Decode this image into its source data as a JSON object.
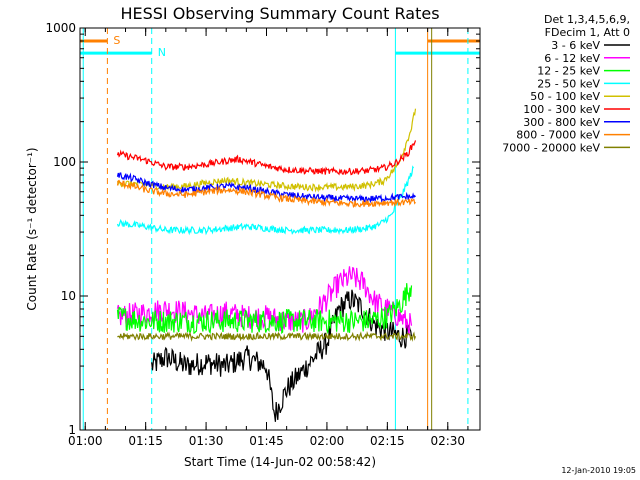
{
  "chart_data": {
    "type": "line",
    "title": "HESSI Observing Summary Count Rates",
    "xlabel": "Start Time (14-Jun-02 00:58:42)",
    "ylabel": "Count Rate (s⁻¹ detector⁻¹)",
    "xlim": [
      "00:58:42",
      "02:38:00"
    ],
    "ylim": [
      1,
      1000
    ],
    "yscale": "log",
    "x_ticks": [
      "01:00",
      "01:15",
      "01:30",
      "01:45",
      "02:00",
      "02:15",
      "02:30"
    ],
    "y_ticks": [
      "1",
      "10",
      "100",
      "1000"
    ],
    "grid": false,
    "legend_position": "right",
    "legend_header": [
      "Det 1,3,4,5,6,9,",
      "FDecim 1, Att 0"
    ],
    "footer_date": "12-Jan-2010 19:05",
    "markers": [
      {
        "label": "S",
        "start": "01:05:30",
        "end": "02:25:00",
        "color": "#ff8000",
        "level": 800
      },
      {
        "label": "N",
        "start": "01:16:30",
        "end": "02:17:00",
        "color": "#00ffff",
        "level": 650
      }
    ],
    "vlines": [
      {
        "x": "00:59:30",
        "color": "#00ffff",
        "style": "solid"
      },
      {
        "x": "01:05:30",
        "color": "#ff8000",
        "style": "dashed"
      },
      {
        "x": "01:16:30",
        "color": "#00ffff",
        "style": "dashed"
      },
      {
        "x": "02:17:00",
        "color": "#00ffff",
        "style": "solid"
      },
      {
        "x": "02:25:00",
        "color": "#ff8000",
        "style": "solid"
      },
      {
        "x": "02:26:00",
        "color": "#808000",
        "style": "solid"
      },
      {
        "x": "02:35:00",
        "color": "#00ffff",
        "style": "dashed"
      }
    ],
    "series": [
      {
        "name": "3 - 6 keV",
        "color": "#000000",
        "x": [
          "01:16:30",
          "01:20:00",
          "01:25:00",
          "01:30:00",
          "01:35:00",
          "01:40:00",
          "01:45:00",
          "01:47:00",
          "01:50:00",
          "01:55:00",
          "02:00:00",
          "02:03:00",
          "02:06:00",
          "02:09:00",
          "02:12:00",
          "02:15:00",
          "02:18:00",
          "02:21:00"
        ],
        "values": [
          3.0,
          3.5,
          3.0,
          3.2,
          3.0,
          3.5,
          3.0,
          1.3,
          2.0,
          3.0,
          4.5,
          8.0,
          9.5,
          8.0,
          6.0,
          5.5,
          5.0,
          5.0
        ]
      },
      {
        "name": "6 - 12 keV",
        "color": "#ff00ff",
        "x": [
          "01:08:00",
          "01:15:00",
          "01:20:00",
          "01:25:00",
          "01:30:00",
          "01:35:00",
          "01:40:00",
          "01:45:00",
          "01:50:00",
          "01:55:00",
          "02:00:00",
          "02:03:00",
          "02:06:00",
          "02:09:00",
          "02:12:00",
          "02:15:00",
          "02:18:00",
          "02:21:00"
        ],
        "values": [
          7.0,
          7.5,
          8.0,
          7.5,
          7.0,
          7.5,
          7.0,
          7.0,
          6.5,
          6.5,
          9.5,
          12.5,
          14.0,
          12.5,
          9.0,
          8.0,
          7.0,
          6.0
        ]
      },
      {
        "name": "12 - 25 keV",
        "color": "#00ff00",
        "x": [
          "01:08:00",
          "01:15:00",
          "01:20:00",
          "01:25:00",
          "01:30:00",
          "01:35:00",
          "01:40:00",
          "01:45:00",
          "01:50:00",
          "01:55:00",
          "02:00:00",
          "02:05:00",
          "02:10:00",
          "02:15:00",
          "02:18:00",
          "02:21:00"
        ],
        "values": [
          7.0,
          6.5,
          6.5,
          6.5,
          6.5,
          6.5,
          6.5,
          6.5,
          6.5,
          6.5,
          6.5,
          6.5,
          6.5,
          7.0,
          8.5,
          12.0
        ]
      },
      {
        "name": "25 - 50 keV",
        "color": "#00ffff",
        "x": [
          "01:08:00",
          "01:15:00",
          "01:20:00",
          "01:25:00",
          "01:30:00",
          "01:35:00",
          "01:40:00",
          "01:45:00",
          "01:50:00",
          "01:55:00",
          "02:00:00",
          "02:05:00",
          "02:10:00",
          "02:13:00",
          "02:16:00",
          "02:18:00",
          "02:20:00",
          "02:21:30"
        ],
        "values": [
          35.0,
          33.0,
          31.0,
          31.0,
          31.0,
          32.0,
          33.0,
          32.0,
          31.0,
          31.0,
          31.0,
          31.0,
          32.0,
          34.0,
          40.0,
          52.0,
          70.0,
          90.0
        ]
      },
      {
        "name": "50 - 100 keV",
        "color": "#d0c000",
        "x": [
          "01:08:00",
          "01:15:00",
          "01:20:00",
          "01:25:00",
          "01:30:00",
          "01:35:00",
          "01:40:00",
          "01:45:00",
          "01:50:00",
          "01:55:00",
          "02:00:00",
          "02:05:00",
          "02:10:00",
          "02:14:00",
          "02:17:00",
          "02:19:00",
          "02:21:00",
          "02:22:00"
        ],
        "values": [
          70.0,
          68.0,
          65.0,
          66.0,
          70.0,
          73.0,
          70.0,
          68.0,
          66.0,
          65.0,
          65.0,
          65.0,
          67.0,
          72.0,
          90.0,
          120.0,
          180.0,
          250.0
        ]
      },
      {
        "name": "100 - 300 keV",
        "color": "#ff0000",
        "x": [
          "01:08:00",
          "01:15:00",
          "01:20:00",
          "01:25:00",
          "01:30:00",
          "01:35:00",
          "01:38:00",
          "01:40:00",
          "01:45:00",
          "01:50:00",
          "01:55:00",
          "02:00:00",
          "02:05:00",
          "02:10:00",
          "02:14:00",
          "02:17:00",
          "02:20:00",
          "02:22:00"
        ],
        "values": [
          115.0,
          103.0,
          92.0,
          92.0,
          96.0,
          102.0,
          105.0,
          102.0,
          93.0,
          88.0,
          86.0,
          85.0,
          85.0,
          86.0,
          90.0,
          98.0,
          115.0,
          145.0
        ]
      },
      {
        "name": "300 - 800 keV",
        "color": "#0000ff",
        "x": [
          "01:08:00",
          "01:12:00",
          "01:15:00",
          "01:20:00",
          "01:25:00",
          "01:30:00",
          "01:35:00",
          "01:40:00",
          "01:45:00",
          "01:50:00",
          "01:55:00",
          "02:00:00",
          "02:05:00",
          "02:10:00",
          "02:15:00",
          "02:20:00",
          "02:22:00"
        ],
        "values": [
          80.0,
          75.0,
          70.0,
          64.0,
          62.0,
          64.0,
          66.0,
          64.0,
          60.0,
          57.0,
          55.0,
          54.0,
          53.0,
          53.0,
          54.0,
          55.0,
          55.0
        ]
      },
      {
        "name": "800 - 7000 keV",
        "color": "#ff8000",
        "x": [
          "01:08:00",
          "01:12:00",
          "01:15:00",
          "01:20:00",
          "01:25:00",
          "01:30:00",
          "01:35:00",
          "01:40:00",
          "01:45:00",
          "01:50:00",
          "01:55:00",
          "02:00:00",
          "02:05:00",
          "02:10:00",
          "02:15:00",
          "02:20:00",
          "02:22:00"
        ],
        "values": [
          70.0,
          66.0,
          62.0,
          58.0,
          57.0,
          60.0,
          62.0,
          60.0,
          56.0,
          53.0,
          51.0,
          50.0,
          49.0,
          49.0,
          50.0,
          50.0,
          50.0
        ]
      },
      {
        "name": "7000 - 20000 keV",
        "color": "#808000",
        "x": [
          "01:08:00",
          "01:15:00",
          "01:20:00",
          "01:25:00",
          "01:30:00",
          "01:35:00",
          "01:40:00",
          "01:45:00",
          "01:50:00",
          "01:55:00",
          "02:00:00",
          "02:05:00",
          "02:10:00",
          "02:15:00",
          "02:20:00",
          "02:22:00"
        ],
        "values": [
          5.0,
          5.0,
          5.0,
          5.0,
          5.0,
          5.0,
          5.0,
          5.0,
          5.0,
          5.0,
          5.0,
          5.0,
          5.0,
          5.0,
          5.0,
          5.0
        ]
      }
    ]
  }
}
